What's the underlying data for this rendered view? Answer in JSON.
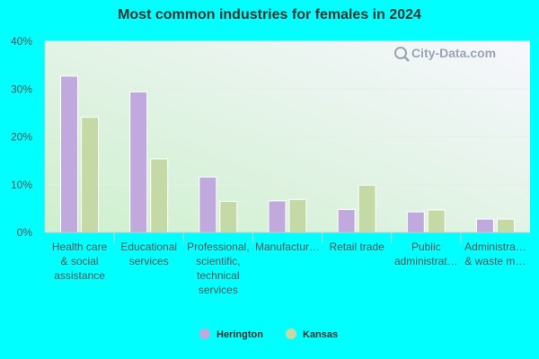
{
  "chart_data": {
    "type": "bar",
    "title": "Most common industries for females in 2024",
    "categories": [
      [
        "Health care",
        "& social",
        "assistance"
      ],
      [
        "Educational",
        "services"
      ],
      [
        "Professional,",
        "scientific,",
        "technical",
        "services"
      ],
      [
        "Manufactur…"
      ],
      [
        "Retail trade"
      ],
      [
        "Public",
        "administrat…"
      ],
      [
        "Administra…",
        "& waste m…"
      ]
    ],
    "series": [
      {
        "name": "Herington",
        "color": "#c0a9dc",
        "values": [
          32.7,
          29.4,
          11.6,
          6.6,
          4.8,
          4.3,
          2.8
        ]
      },
      {
        "name": "Kansas",
        "color": "#c5d9a6",
        "values": [
          24.1,
          15.4,
          6.5,
          6.9,
          9.9,
          4.7,
          2.8
        ]
      }
    ],
    "ylim": [
      0,
      40
    ],
    "yticks": [
      0,
      10,
      20,
      30,
      40
    ],
    "ytick_labels": [
      "0%",
      "10%",
      "20%",
      "30%",
      "40%"
    ],
    "grid": true,
    "legend": "bottom-center",
    "watermark": "City-Data.com",
    "watermark_icon": "magnifier-icon"
  }
}
